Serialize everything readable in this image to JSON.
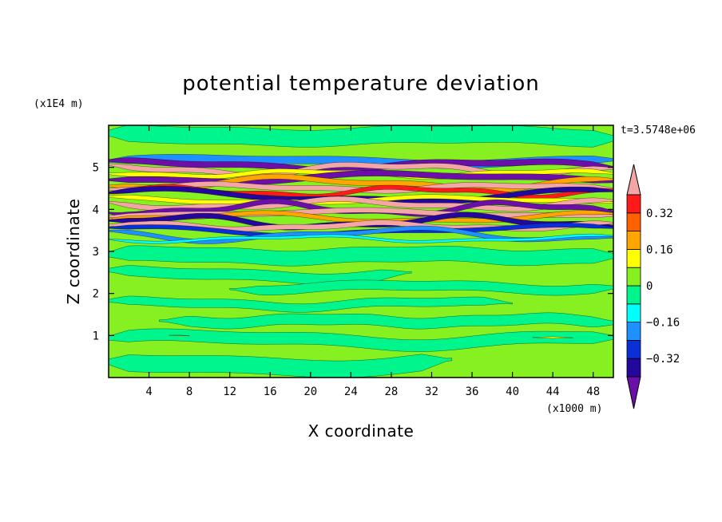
{
  "chart_data": {
    "type": "heatmap",
    "title": "potential temperature deviation",
    "xlabel": "X coordinate",
    "ylabel": "Z coordinate",
    "x_unit": "(x1000 m)",
    "y_unit": "(x1E4 m)",
    "time_label": "t=3.5748e+06",
    "xlim": [
      0,
      50
    ],
    "ylim": [
      0,
      6
    ],
    "x_ticks": [
      "4",
      "8",
      "12",
      "16",
      "20",
      "24",
      "28",
      "32",
      "36",
      "40",
      "44",
      "48"
    ],
    "y_ticks": [
      "1",
      "2",
      "3",
      "4",
      "5"
    ],
    "colorbar": {
      "levels": [
        -0.48,
        -0.4,
        -0.32,
        -0.24,
        -0.16,
        -0.08,
        0,
        0.08,
        0.16,
        0.24,
        0.32,
        0.4,
        0.48
      ],
      "colors": [
        "#6b0fa8",
        "#24089c",
        "#0a2fd6",
        "#1e90ff",
        "#00ffff",
        "#00f58c",
        "#86f021",
        "#ffff00",
        "#ffa500",
        "#ff6000",
        "#ff1a1a",
        "#f4a6a6"
      ],
      "labels": [
        "0.32",
        "0.16",
        "0",
        "−0.16",
        "−0.32"
      ],
      "extend": "both"
    },
    "field_description_bands": [
      {
        "z_range": [
          3.3,
          5.3
        ],
        "character": "strong alternating positive/negative layers"
      },
      {
        "z_range": [
          0,
          3.3
        ],
        "character": "weak deviations near zero"
      }
    ]
  }
}
